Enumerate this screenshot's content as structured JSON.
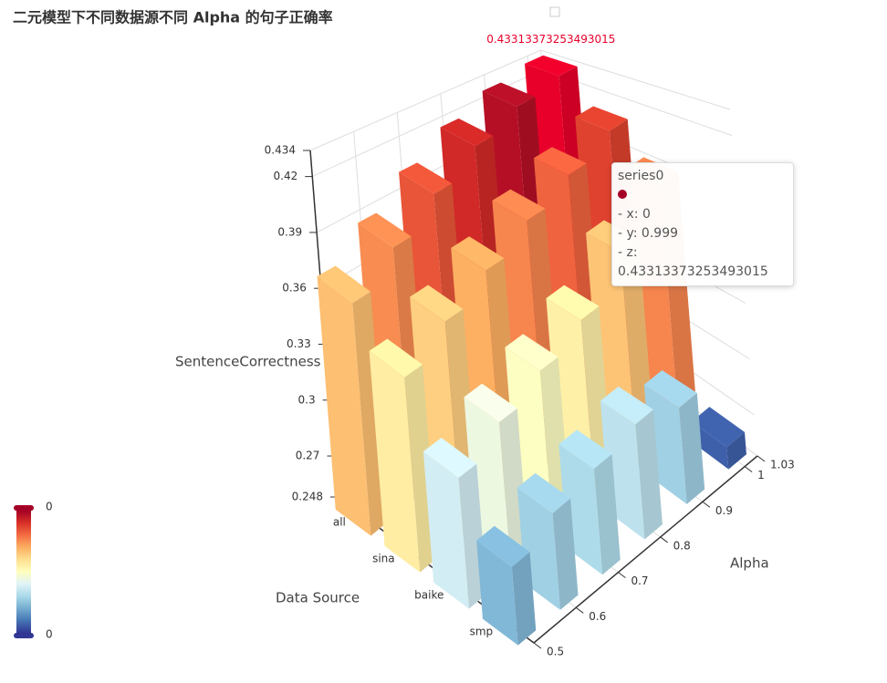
{
  "chart_data": {
    "type": "bar3d",
    "title": "二元模型下不同数据源不同 Alpha 的句子正确率",
    "x_axis_name": "Data Source",
    "y_axis_name": "Alpha",
    "z_axis_name": "SentenceCorrectness",
    "categories": [
      "all",
      "sina",
      "baike",
      "smp"
    ],
    "x": [
      0.5,
      0.6,
      0.7,
      0.8,
      0.9,
      0.999
    ],
    "values": [
      [
        0.372,
        0.388,
        0.404,
        0.418,
        0.428,
        0.43313373253493015
      ],
      [
        0.352,
        0.366,
        0.378,
        0.39,
        0.4,
        0.41
      ],
      [
        0.318,
        0.33,
        0.34,
        0.35,
        0.37,
        0.39
      ],
      [
        0.29,
        0.3,
        0.305,
        0.31,
        0.3,
        0.26
      ]
    ],
    "ylim": [
      0.5,
      1.03
    ],
    "yticks": [
      0.5,
      0.6,
      0.7,
      0.8,
      0.9,
      1,
      1.03
    ],
    "zlim": [
      0.248,
      0.434
    ],
    "zticks": [
      0.248,
      0.27,
      0.3,
      0.33,
      0.36,
      0.39,
      0.42,
      0.434
    ],
    "grid": true,
    "colors": [
      "#313695",
      "#4575b4",
      "#74add1",
      "#abd9e9",
      "#e0f3f8",
      "#ffffbf",
      "#fee090",
      "#fdae61",
      "#f46d43",
      "#d73027",
      "#a50026"
    ],
    "highlight_color": "#e8002a",
    "visual_map": {
      "max_label": 0,
      "min_label": 0
    },
    "tooltip": {
      "series": "series0",
      "lines": [
        "- x: 0",
        "- y: 0.999",
        "- z: 0.43313373253493015"
      ],
      "color": "#a50026"
    }
  }
}
